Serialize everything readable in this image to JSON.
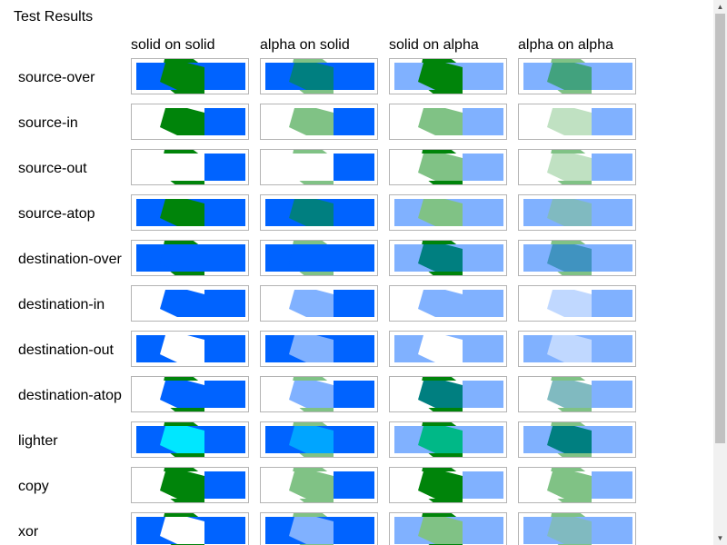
{
  "page": {
    "title": "Test Results"
  },
  "columns": [
    "solid on solid",
    "alpha on solid",
    "solid on alpha",
    "alpha on alpha"
  ],
  "rows": [
    {
      "label": "source-over",
      "cells": [
        {
          "bg": "#0063ff",
          "inside": "#00840a",
          "outside": "#00840a",
          "right": "#0063ff"
        },
        {
          "bg": "#0063ff",
          "inside": "#007f80",
          "outside": "#80c285",
          "right": "#0063ff"
        },
        {
          "bg": "#80b1ff",
          "inside": "#00840a",
          "outside": "#00840a",
          "right": "#80b1ff"
        },
        {
          "bg": "#80b1ff",
          "inside": "#42a27e",
          "outside": "#80c285",
          "right": "#80b1ff"
        }
      ]
    },
    {
      "label": "source-in",
      "cells": [
        {
          "bg": "none",
          "inside": "#00840a",
          "outside": "none",
          "right": "#0063ff"
        },
        {
          "bg": "none",
          "inside": "#80c285",
          "outside": "none",
          "right": "#0063ff"
        },
        {
          "bg": "none",
          "inside": "#80c285",
          "outside": "none",
          "right": "#80b1ff"
        },
        {
          "bg": "none",
          "inside": "#c0e1c2",
          "outside": "none",
          "right": "#80b1ff"
        }
      ]
    },
    {
      "label": "source-out",
      "cells": [
        {
          "bg": "none",
          "inside": "none",
          "outside": "#00840a",
          "right": "#0063ff"
        },
        {
          "bg": "none",
          "inside": "none",
          "outside": "#80c285",
          "right": "#0063ff"
        },
        {
          "bg": "none",
          "inside": "#80c285",
          "outside": "#00840a",
          "right": "#80b1ff"
        },
        {
          "bg": "none",
          "inside": "#c0e1c2",
          "outside": "#80c285",
          "right": "#80b1ff"
        }
      ]
    },
    {
      "label": "source-atop",
      "cells": [
        {
          "bg": "#0063ff",
          "inside": "#00840a",
          "outside": "none",
          "right": "#0063ff"
        },
        {
          "bg": "#0063ff",
          "inside": "#007f80",
          "outside": "none",
          "right": "#0063ff"
        },
        {
          "bg": "#80b1ff",
          "inside": "#80c285",
          "outside": "none",
          "right": "#80b1ff"
        },
        {
          "bg": "#80b1ff",
          "inside": "#80bac0",
          "outside": "none",
          "right": "#80b1ff"
        }
      ]
    },
    {
      "label": "destination-over",
      "cells": [
        {
          "bg": "#0063ff",
          "inside": "#0063ff",
          "outside": "#00840a",
          "right": "#0063ff"
        },
        {
          "bg": "#0063ff",
          "inside": "#0063ff",
          "outside": "#80c285",
          "right": "#0063ff"
        },
        {
          "bg": "#80b1ff",
          "inside": "#007f80",
          "outside": "#00840a",
          "right": "#80b1ff"
        },
        {
          "bg": "#80b1ff",
          "inside": "#4093c0",
          "outside": "#80c285",
          "right": "#80b1ff"
        }
      ]
    },
    {
      "label": "destination-in",
      "cells": [
        {
          "bg": "none",
          "inside": "#0063ff",
          "outside": "none",
          "right": "#0063ff"
        },
        {
          "bg": "none",
          "inside": "#80b1ff",
          "outside": "none",
          "right": "#0063ff"
        },
        {
          "bg": "none",
          "inside": "#80b1ff",
          "outside": "none",
          "right": "#80b1ff"
        },
        {
          "bg": "none",
          "inside": "#c0d8ff",
          "outside": "none",
          "right": "#80b1ff"
        }
      ]
    },
    {
      "label": "destination-out",
      "cells": [
        {
          "bg": "#0063ff",
          "inside": "#ffffff",
          "outside": "none",
          "right": "#0063ff"
        },
        {
          "bg": "#0063ff",
          "inside": "#80b1ff",
          "outside": "none",
          "right": "#0063ff"
        },
        {
          "bg": "#80b1ff",
          "inside": "#ffffff",
          "outside": "none",
          "right": "#80b1ff"
        },
        {
          "bg": "#80b1ff",
          "inside": "#c0d8ff",
          "outside": "none",
          "right": "#80b1ff"
        }
      ]
    },
    {
      "label": "destination-atop",
      "cells": [
        {
          "bg": "none",
          "inside": "#0063ff",
          "outside": "#00840a",
          "right": "#0063ff"
        },
        {
          "bg": "none",
          "inside": "#80b1ff",
          "outside": "#80c285",
          "right": "#0063ff"
        },
        {
          "bg": "none",
          "inside": "#007f80",
          "outside": "#00840a",
          "right": "#80b1ff"
        },
        {
          "bg": "none",
          "inside": "#80bac0",
          "outside": "#80c285",
          "right": "#80b1ff"
        }
      ]
    },
    {
      "label": "lighter",
      "cells": [
        {
          "bg": "#0063ff",
          "inside": "#00e7ff",
          "outside": "#00840a",
          "right": "#0063ff"
        },
        {
          "bg": "#0063ff",
          "inside": "#00a5ff",
          "outside": "#80c285",
          "right": "#0063ff"
        },
        {
          "bg": "#80b1ff",
          "inside": "#00b887",
          "outside": "#00840a",
          "right": "#80b1ff"
        },
        {
          "bg": "#80b1ff",
          "inside": "#007f80",
          "outside": "#80c285",
          "right": "#80b1ff"
        }
      ]
    },
    {
      "label": "copy",
      "cells": [
        {
          "bg": "none",
          "inside": "#00840a",
          "outside": "#00840a",
          "right": "#0063ff"
        },
        {
          "bg": "none",
          "inside": "#80c285",
          "outside": "#80c285",
          "right": "#0063ff"
        },
        {
          "bg": "none",
          "inside": "#00840a",
          "outside": "#00840a",
          "right": "#80b1ff"
        },
        {
          "bg": "none",
          "inside": "#80c285",
          "outside": "#80c285",
          "right": "#80b1ff"
        }
      ]
    },
    {
      "label": "xor",
      "cells": [
        {
          "bg": "#0063ff",
          "inside": "#ffffff",
          "outside": "#00840a",
          "right": "#0063ff"
        },
        {
          "bg": "#0063ff",
          "inside": "#80b1ff",
          "outside": "#80c285",
          "right": "#0063ff"
        },
        {
          "bg": "#80b1ff",
          "inside": "#80c285",
          "outside": "#00840a",
          "right": "#80b1ff"
        },
        {
          "bg": "#80b1ff",
          "inside": "#80bac0",
          "outside": "#80c285",
          "right": "#80b1ff"
        }
      ]
    }
  ]
}
